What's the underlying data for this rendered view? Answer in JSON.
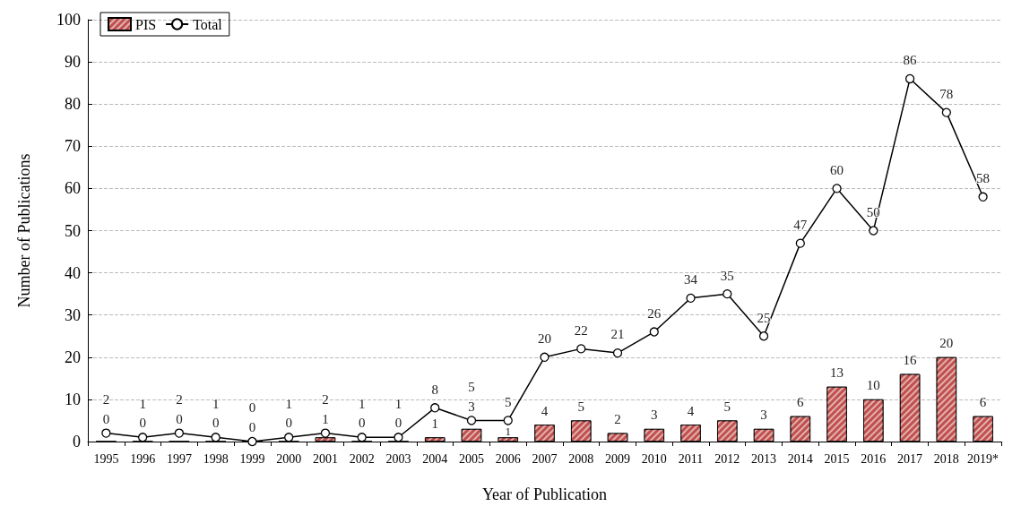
{
  "chart_data": {
    "type": "bar",
    "xlabel": "Year of Publication",
    "ylabel": "Number of Publications",
    "categories": [
      "1995",
      "1996",
      "1997",
      "1998",
      "1999",
      "2000",
      "2001",
      "2002",
      "2003",
      "2004",
      "2005",
      "2006",
      "2007",
      "2008",
      "2009",
      "2010",
      "2011",
      "2012",
      "2013",
      "2014",
      "2015",
      "2016",
      "2017",
      "2018",
      "2019*"
    ],
    "series": [
      {
        "name": "PIS",
        "color": "#c0504d",
        "values": [
          0,
          0,
          0,
          0,
          0,
          0,
          1,
          0,
          0,
          1,
          3,
          1,
          4,
          5,
          2,
          3,
          4,
          5,
          3,
          6,
          13,
          10,
          16,
          20,
          6
        ]
      },
      {
        "name": "Total",
        "type": "line",
        "color": "#000000",
        "marker": "circle",
        "line_style": "solid",
        "values": [
          2,
          1,
          2,
          1,
          0,
          1,
          2,
          1,
          1,
          8,
          5,
          5,
          20,
          22,
          21,
          26,
          34,
          35,
          25,
          47,
          60,
          50,
          86,
          78,
          58
        ]
      }
    ],
    "ylim": [
      0,
      100
    ],
    "yticks": [
      0,
      10,
      20,
      30,
      40,
      50,
      60,
      70,
      80,
      90,
      100
    ],
    "grid": "y",
    "legend": "top left",
    "data_labels": true
  }
}
